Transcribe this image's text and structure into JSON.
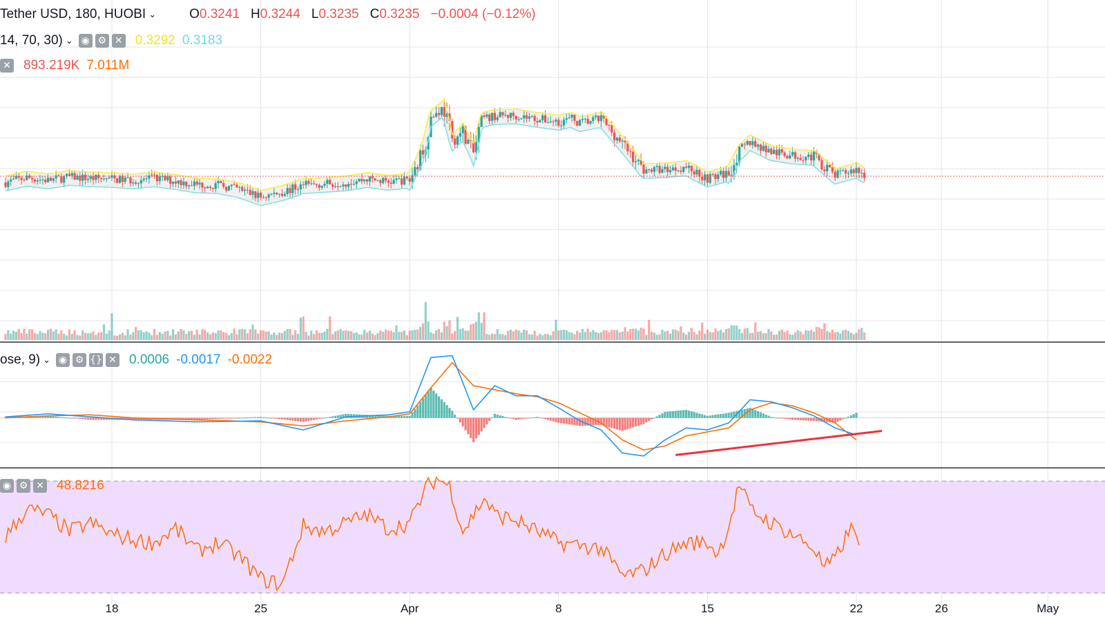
{
  "header": {
    "symbol": "Tether USD, 180, HUOBI",
    "o_label": "O",
    "o_value": "0.3241",
    "h_label": "H",
    "h_value": "0.3244",
    "l_label": "L",
    "l_value": "0.3235",
    "c_label": "C",
    "c_value": "0.3235",
    "change": "−0.0004 (−0.12%)"
  },
  "indicators": {
    "band": {
      "params": "14, 70, 30)",
      "upper": "0.3292",
      "lower": "0.3183"
    },
    "volume": {
      "value": "893.219K",
      "ma": "7.011M"
    },
    "macd": {
      "params": "ose, 9)",
      "hist": "0.0006",
      "macd": "-0.0017",
      "signal": "-0.0022"
    },
    "rsi": {
      "value": "48.8216"
    }
  },
  "colors": {
    "up": "#26a69a",
    "down": "#ef5350",
    "band_upper": "#ffeb3b",
    "band_lower": "#80deea",
    "band_fill": "#e6e6e6",
    "macd": "#2196f3",
    "signal": "#ff6d00",
    "rsi": "#ff6d00",
    "rsi_zone": "#f0dcff",
    "trendline": "#ef3038",
    "price_line": "#ef5350",
    "grid": "#e0e3eb"
  },
  "icons": [
    "eye-icon",
    "gear-icon",
    "braces-icon",
    "close-icon",
    "chevron-down-icon"
  ],
  "chart_data": {
    "type": "candlestick",
    "x_ticks": [
      {
        "day": 18,
        "label": "18"
      },
      {
        "day": 25,
        "label": "25"
      },
      {
        "day": 32,
        "label": "Apr"
      },
      {
        "day": 39,
        "label": "8"
      },
      {
        "day": 46,
        "label": "15"
      },
      {
        "day": 53,
        "label": "22"
      },
      {
        "day": 57,
        "label": "26"
      },
      {
        "day": 62,
        "label": "May"
      }
    ],
    "price_range": [
      0.305,
      0.345
    ],
    "last_price": 0.3235,
    "price_path": [
      [
        13,
        0.3226
      ],
      [
        14,
        0.3233
      ],
      [
        15,
        0.3229
      ],
      [
        16,
        0.3234
      ],
      [
        17,
        0.3232
      ],
      [
        18,
        0.3231
      ],
      [
        19,
        0.3229
      ],
      [
        20,
        0.3232
      ],
      [
        21,
        0.3228
      ],
      [
        22,
        0.3223
      ],
      [
        23,
        0.3222
      ],
      [
        24,
        0.3216
      ],
      [
        25,
        0.3205
      ],
      [
        26,
        0.3212
      ],
      [
        27,
        0.3222
      ],
      [
        28,
        0.3224
      ],
      [
        29,
        0.3226
      ],
      [
        30,
        0.3231
      ],
      [
        31,
        0.3227
      ],
      [
        32,
        0.323
      ],
      [
        32.6,
        0.327
      ],
      [
        33,
        0.332
      ],
      [
        33.6,
        0.3335
      ],
      [
        34,
        0.3285
      ],
      [
        34.5,
        0.33
      ],
      [
        35,
        0.3268
      ],
      [
        35.4,
        0.3318
      ],
      [
        36,
        0.3322
      ],
      [
        37,
        0.3323
      ],
      [
        38,
        0.3318
      ],
      [
        39,
        0.3314
      ],
      [
        39.6,
        0.3318
      ],
      [
        40,
        0.3312
      ],
      [
        41,
        0.3318
      ],
      [
        42,
        0.3282
      ],
      [
        43,
        0.3244
      ],
      [
        44,
        0.3245
      ],
      [
        45,
        0.3248
      ],
      [
        46,
        0.3232
      ],
      [
        47,
        0.324
      ],
      [
        47.5,
        0.327
      ],
      [
        48,
        0.3285
      ],
      [
        49,
        0.327
      ],
      [
        50,
        0.3265
      ],
      [
        51,
        0.3263
      ],
      [
        52,
        0.3236
      ],
      [
        53,
        0.3245
      ],
      [
        53.4,
        0.3237
      ]
    ],
    "macd_values": [
      [
        13,
        0.0001
      ],
      [
        15,
        0.0004
      ],
      [
        17,
        0.0001
      ],
      [
        19,
        -0.0002
      ],
      [
        22,
        -0.0004
      ],
      [
        25,
        -0.0003
      ],
      [
        27,
        -0.0012
      ],
      [
        29,
        0.0001
      ],
      [
        31,
        0.0003
      ],
      [
        32,
        0.0006
      ],
      [
        33,
        0.006
      ],
      [
        34,
        0.0062
      ],
      [
        35,
        0.0008
      ],
      [
        36,
        0.0032
      ],
      [
        37,
        0.0022
      ],
      [
        38,
        0.0022
      ],
      [
        39,
        0.001
      ],
      [
        40,
        -0.0003
      ],
      [
        41,
        -0.0012
      ],
      [
        42,
        -0.0035
      ],
      [
        43,
        -0.0038
      ],
      [
        44,
        -0.0022
      ],
      [
        45,
        -0.001
      ],
      [
        46,
        -0.0012
      ],
      [
        47,
        -0.0005
      ],
      [
        48,
        0.0018
      ],
      [
        49,
        0.0016
      ],
      [
        50,
        0.001
      ],
      [
        51,
        0.0002
      ],
      [
        52,
        -0.001
      ],
      [
        53,
        -0.0017
      ]
    ],
    "signal_values": [
      [
        13,
        0.0
      ],
      [
        15,
        0.0002
      ],
      [
        17,
        0.0003
      ],
      [
        19,
        0.0
      ],
      [
        22,
        -0.0002
      ],
      [
        25,
        -0.0004
      ],
      [
        27,
        -0.0008
      ],
      [
        29,
        -0.0003
      ],
      [
        31,
        0.0001
      ],
      [
        32,
        0.0004
      ],
      [
        33,
        0.003
      ],
      [
        34,
        0.0055
      ],
      [
        35,
        0.0032
      ],
      [
        36,
        0.0028
      ],
      [
        37,
        0.0024
      ],
      [
        38,
        0.0021
      ],
      [
        39,
        0.0015
      ],
      [
        40,
        0.0005
      ],
      [
        41,
        -0.0005
      ],
      [
        42,
        -0.0022
      ],
      [
        43,
        -0.0032
      ],
      [
        44,
        -0.0028
      ],
      [
        45,
        -0.0018
      ],
      [
        46,
        -0.0014
      ],
      [
        47,
        -0.001
      ],
      [
        48,
        0.0008
      ],
      [
        49,
        0.0015
      ],
      [
        50,
        0.0012
      ],
      [
        51,
        0.0005
      ],
      [
        52,
        -0.0005
      ],
      [
        53,
        -0.0022
      ]
    ],
    "macd_range": [
      -0.0045,
      0.0072
    ],
    "trendline": [
      [
        44.5,
        -0.0037
      ],
      [
        54.2,
        -0.0013
      ]
    ],
    "rsi_values": [
      [
        13,
        50
      ],
      [
        14,
        60
      ],
      [
        15,
        58
      ],
      [
        16,
        52
      ],
      [
        17,
        55
      ],
      [
        18,
        51
      ],
      [
        19,
        49
      ],
      [
        20,
        48
      ],
      [
        21,
        53
      ],
      [
        22,
        45
      ],
      [
        23,
        48
      ],
      [
        24,
        43
      ],
      [
        25,
        35
      ],
      [
        26,
        33
      ],
      [
        27,
        54
      ],
      [
        28,
        52
      ],
      [
        29,
        55
      ],
      [
        30,
        58
      ],
      [
        31,
        53
      ],
      [
        32,
        55
      ],
      [
        32.8,
        68
      ],
      [
        33.3,
        71
      ],
      [
        33.9,
        68
      ],
      [
        34.5,
        52
      ],
      [
        35,
        58
      ],
      [
        35.5,
        64
      ],
      [
        36,
        58
      ],
      [
        37,
        56
      ],
      [
        38,
        52
      ],
      [
        39,
        48
      ],
      [
        40,
        47
      ],
      [
        41,
        46
      ],
      [
        42,
        36
      ],
      [
        43,
        38
      ],
      [
        44,
        44
      ],
      [
        45,
        48
      ],
      [
        46,
        48
      ],
      [
        46.5,
        44
      ],
      [
        47,
        54
      ],
      [
        47.5,
        69
      ],
      [
        48,
        60
      ],
      [
        49,
        55
      ],
      [
        50,
        51
      ],
      [
        51,
        46
      ],
      [
        51.5,
        39
      ],
      [
        52,
        42
      ],
      [
        52.7,
        53
      ],
      [
        53.2,
        49
      ]
    ],
    "rsi_range": [
      30,
      74
    ],
    "rsi_bands": [
      30,
      70
    ]
  }
}
